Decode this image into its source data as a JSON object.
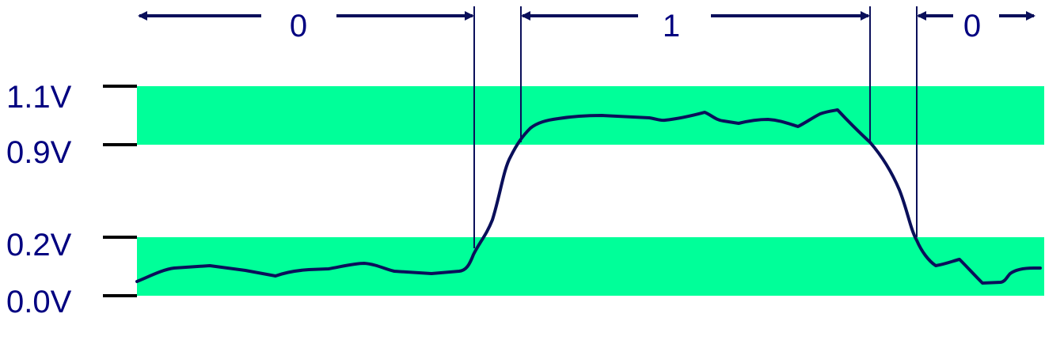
{
  "colors": {
    "band": "#00ff99",
    "ink": "#0a0f5a",
    "label": "#000080",
    "axis": "#000000"
  },
  "voltage_labels": {
    "v_1_1": "1.1V",
    "v_0_9": "0.9V",
    "v_0_2": "0.2V",
    "v_0_0": "0.0V"
  },
  "logic_labels": {
    "first": "0",
    "second": "1",
    "third": "0"
  },
  "bands": [
    {
      "meaning": "logic-high",
      "from_v": 0.9,
      "to_v": 1.1
    },
    {
      "meaning": "logic-low",
      "from_v": 0.0,
      "to_v": 0.2
    }
  ]
}
